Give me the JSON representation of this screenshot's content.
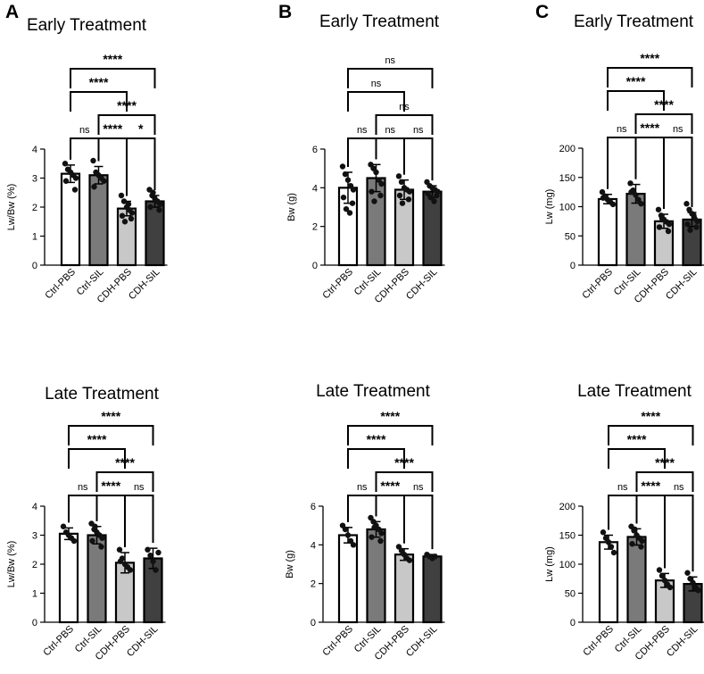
{
  "panels": [
    {
      "letter": "A"
    },
    {
      "letter": "B"
    },
    {
      "letter": "C"
    }
  ],
  "chart_data": [
    {
      "type": "bar",
      "title": "Early Treatment",
      "ylabel": "Lw/Bw (%)",
      "ylim": [
        0,
        4
      ],
      "yticks": [
        0,
        1,
        2,
        3,
        4
      ],
      "categories": [
        "Ctrl-PBS",
        "Ctrl-SIL",
        "CDH-PBS",
        "CDH-SIL"
      ],
      "values": [
        3.15,
        3.1,
        1.95,
        2.2
      ],
      "errors": [
        0.3,
        0.3,
        0.25,
        0.2
      ],
      "fills": [
        "#ffffff",
        "#7a7a7a",
        "#c8c8c8",
        "#404040"
      ],
      "points": [
        [
          3.5,
          3.3,
          3.2,
          3.1,
          3.0,
          2.9,
          2.6
        ],
        [
          3.6,
          3.2,
          3.1,
          3.0,
          2.9,
          2.7
        ],
        [
          2.4,
          2.2,
          2.0,
          1.9,
          1.8,
          1.7,
          1.6,
          1.5,
          2.1
        ],
        [
          2.6,
          2.4,
          2.3,
          2.2,
          2.1,
          2.0,
          1.9,
          2.5,
          2.2
        ]
      ],
      "comparisons": [
        {
          "from": 0,
          "to": 1,
          "label": "ns",
          "level": 0
        },
        {
          "from": 1,
          "to": 2,
          "label": "****",
          "level": 0
        },
        {
          "from": 2,
          "to": 3,
          "label": "*",
          "level": 0
        },
        {
          "from": 1,
          "to": 3,
          "label": "****",
          "level": 1
        },
        {
          "from": 0,
          "to": 2,
          "label": "****",
          "level": 2
        },
        {
          "from": 0,
          "to": 3,
          "label": "****",
          "level": 3
        }
      ]
    },
    {
      "type": "bar",
      "title": "Early Treatment",
      "ylabel": "Bw (g)",
      "ylim": [
        0,
        6
      ],
      "yticks": [
        0,
        2,
        4,
        6
      ],
      "categories": [
        "Ctrl-PBS",
        "Ctrl-SIL",
        "CDH-PBS",
        "CDH-SIL"
      ],
      "values": [
        4.0,
        4.5,
        3.9,
        3.8
      ],
      "errors": [
        0.8,
        0.7,
        0.5,
        0.3
      ],
      "fills": [
        "#ffffff",
        "#7a7a7a",
        "#c8c8c8",
        "#404040"
      ],
      "points": [
        [
          5.1,
          4.7,
          4.4,
          4.1,
          3.9,
          3.5,
          3.2,
          2.9,
          2.7
        ],
        [
          5.2,
          5.0,
          4.8,
          4.4,
          4.2,
          3.8,
          3.6,
          3.3
        ],
        [
          4.6,
          4.3,
          4.0,
          3.9,
          3.8,
          3.6,
          3.4,
          3.2
        ],
        [
          4.3,
          4.1,
          4.0,
          3.9,
          3.8,
          3.7,
          3.6,
          3.5,
          3.3
        ]
      ],
      "comparisons": [
        {
          "from": 0,
          "to": 1,
          "label": "ns",
          "level": 0
        },
        {
          "from": 1,
          "to": 2,
          "label": "ns",
          "level": 0
        },
        {
          "from": 2,
          "to": 3,
          "label": "ns",
          "level": 0
        },
        {
          "from": 1,
          "to": 3,
          "label": "ns",
          "level": 1
        },
        {
          "from": 0,
          "to": 2,
          "label": "ns",
          "level": 2
        },
        {
          "from": 0,
          "to": 3,
          "label": "ns",
          "level": 3
        }
      ]
    },
    {
      "type": "bar",
      "title": "Early Treatment",
      "ylabel": "Lw (mg)",
      "ylim": [
        0,
        200
      ],
      "yticks": [
        0,
        50,
        100,
        150,
        200
      ],
      "categories": [
        "Ctrl-PBS",
        "Ctrl-SIL",
        "CDH-PBS",
        "CDH-SIL"
      ],
      "values": [
        113,
        122,
        75,
        78
      ],
      "errors": [
        8,
        16,
        12,
        12
      ],
      "fills": [
        "#ffffff",
        "#7a7a7a",
        "#c8c8c8",
        "#404040"
      ],
      "points": [
        [
          125,
          118,
          112,
          108,
          104,
          115
        ],
        [
          140,
          128,
          120,
          112,
          105,
          125
        ],
        [
          95,
          85,
          78,
          74,
          70,
          65,
          58,
          80
        ],
        [
          105,
          95,
          88,
          80,
          75,
          70,
          65,
          60,
          85
        ]
      ],
      "comparisons": [
        {
          "from": 0,
          "to": 1,
          "label": "ns",
          "level": 0
        },
        {
          "from": 1,
          "to": 2,
          "label": "****",
          "level": 0
        },
        {
          "from": 2,
          "to": 3,
          "label": "ns",
          "level": 0
        },
        {
          "from": 1,
          "to": 3,
          "label": "****",
          "level": 1
        },
        {
          "from": 0,
          "to": 2,
          "label": "****",
          "level": 2
        },
        {
          "from": 0,
          "to": 3,
          "label": "****",
          "level": 3
        }
      ]
    },
    {
      "type": "bar",
      "title": "Late Treatment",
      "ylabel": "Lw/Bw (%)",
      "ylim": [
        0,
        4
      ],
      "yticks": [
        0,
        1,
        2,
        3,
        4
      ],
      "categories": [
        "Ctrl-PBS",
        "Ctrl-SIL",
        "CDH-PBS",
        "CDH-SIL"
      ],
      "values": [
        3.05,
        3.0,
        2.05,
        2.2
      ],
      "errors": [
        0.2,
        0.3,
        0.35,
        0.35
      ],
      "fills": [
        "#ffffff",
        "#7a7a7a",
        "#c8c8c8",
        "#404040"
      ],
      "points": [
        [
          3.3,
          3.1,
          3.0,
          2.9,
          2.8
        ],
        [
          3.4,
          3.2,
          3.1,
          3.0,
          2.9,
          2.8,
          2.6,
          3.3
        ],
        [
          2.5,
          2.2,
          2.0,
          1.9,
          1.8,
          2.1
        ],
        [
          2.5,
          2.3,
          2.1,
          1.8,
          2.4
        ]
      ],
      "comparisons": [
        {
          "from": 0,
          "to": 1,
          "label": "ns",
          "level": 0
        },
        {
          "from": 1,
          "to": 2,
          "label": "****",
          "level": 0
        },
        {
          "from": 2,
          "to": 3,
          "label": "ns",
          "level": 0
        },
        {
          "from": 1,
          "to": 3,
          "label": "****",
          "level": 1
        },
        {
          "from": 0,
          "to": 2,
          "label": "****",
          "level": 2
        },
        {
          "from": 0,
          "to": 3,
          "label": "****",
          "level": 3
        }
      ]
    },
    {
      "type": "bar",
      "title": "Late Treatment",
      "ylabel": "Bw (g)",
      "ylim": [
        0,
        6
      ],
      "yticks": [
        0,
        2,
        4,
        6
      ],
      "categories": [
        "Ctrl-PBS",
        "Ctrl-SIL",
        "CDH-PBS",
        "CDH-SIL"
      ],
      "values": [
        4.5,
        4.8,
        3.5,
        3.4
      ],
      "errors": [
        0.4,
        0.4,
        0.3,
        0.1
      ],
      "fills": [
        "#ffffff",
        "#7a7a7a",
        "#c8c8c8",
        "#404040"
      ],
      "points": [
        [
          5.0,
          4.8,
          4.5,
          4.2,
          4.0
        ],
        [
          5.4,
          5.2,
          5.0,
          4.8,
          4.6,
          4.4,
          4.2,
          4.9
        ],
        [
          3.9,
          3.7,
          3.5,
          3.3,
          3.2
        ],
        [
          3.5,
          3.4,
          3.3,
          3.4
        ]
      ],
      "comparisons": [
        {
          "from": 0,
          "to": 1,
          "label": "ns",
          "level": 0
        },
        {
          "from": 1,
          "to": 2,
          "label": "****",
          "level": 0
        },
        {
          "from": 2,
          "to": 3,
          "label": "ns",
          "level": 0
        },
        {
          "from": 1,
          "to": 3,
          "label": "****",
          "level": 1
        },
        {
          "from": 0,
          "to": 2,
          "label": "****",
          "level": 2
        },
        {
          "from": 0,
          "to": 3,
          "label": "****",
          "level": 3
        }
      ]
    },
    {
      "type": "bar",
      "title": "Late Treatment",
      "ylabel": "Lw (mg)",
      "ylim": [
        0,
        200
      ],
      "yticks": [
        0,
        50,
        100,
        150,
        200
      ],
      "categories": [
        "Ctrl-PBS",
        "Ctrl-SIL",
        "CDH-PBS",
        "CDH-SIL"
      ],
      "values": [
        138,
        147,
        72,
        66
      ],
      "errors": [
        12,
        14,
        12,
        12
      ],
      "fills": [
        "#ffffff",
        "#7a7a7a",
        "#c8c8c8",
        "#404040"
      ],
      "points": [
        [
          155,
          145,
          138,
          130,
          120
        ],
        [
          165,
          158,
          150,
          145,
          140,
          135,
          130,
          160
        ],
        [
          90,
          80,
          72,
          65,
          60
        ],
        [
          85,
          75,
          68,
          60,
          55
        ]
      ],
      "comparisons": [
        {
          "from": 0,
          "to": 1,
          "label": "ns",
          "level": 0
        },
        {
          "from": 1,
          "to": 2,
          "label": "****",
          "level": 0
        },
        {
          "from": 2,
          "to": 3,
          "label": "ns",
          "level": 0
        },
        {
          "from": 1,
          "to": 3,
          "label": "****",
          "level": 1
        },
        {
          "from": 0,
          "to": 2,
          "label": "****",
          "level": 2
        },
        {
          "from": 0,
          "to": 3,
          "label": "****",
          "level": 3
        }
      ]
    }
  ]
}
